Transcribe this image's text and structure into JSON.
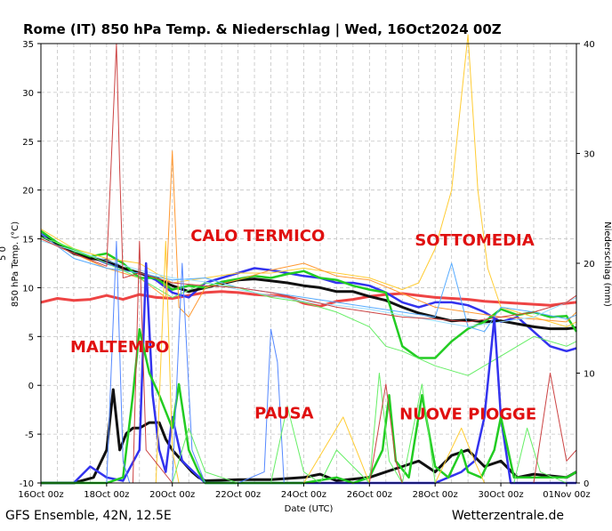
{
  "chart_data": {
    "type": "line",
    "title": "Rome  (IT)  850 hPa Temp. & Niederschlag | Wed, 16Oct2024 00Z",
    "xlabel": "Date (UTC)",
    "ylabel_left": "850 hPa Temp. (°C)",
    "ylabel_left_extra": "5\n0",
    "ylabel_right": "Niederschlag (mm)",
    "x_ticks": [
      "16Oct 00z",
      "18Oct 00z",
      "20Oct 00z",
      "22Oct 00z",
      "24Oct 00z",
      "26Oct 00z",
      "28Oct 00z",
      "30Oct 00z",
      "01Nov 00z"
    ],
    "x_range_days": [
      0,
      16.3
    ],
    "y_left_ticks": [
      35,
      30,
      25,
      20,
      15,
      10,
      5,
      0,
      -5,
      -10
    ],
    "y_left_range": [
      -10,
      35
    ],
    "y_right_ticks": [
      40,
      30,
      20,
      10,
      0
    ],
    "y_right_range": [
      0,
      40
    ],
    "grid": true,
    "annotations": [
      {
        "text": "CALO TERMICO",
        "x": 6.6,
        "y": 14.8
      },
      {
        "text": "SOTTOMEDIA",
        "x": 13.2,
        "y": 14.3
      },
      {
        "text": "MALTEMPO",
        "x": 2.4,
        "y": 3.4
      },
      {
        "text": "PAUSA",
        "x": 7.4,
        "y": -3.4
      },
      {
        "text": "NUOVE PIOGGE",
        "x": 13.0,
        "y": -3.5
      }
    ],
    "series": [
      {
        "role": "climatology",
        "color": "#ee4444",
        "width": 3,
        "axis": "left",
        "x": [
          0,
          0.5,
          1,
          1.5,
          2,
          2.5,
          3,
          3.5,
          4,
          4.5,
          5,
          5.5,
          6,
          6.5,
          7,
          7.5,
          8,
          8.5,
          9,
          9.5,
          10,
          10.5,
          11,
          11.5,
          12,
          12.5,
          13,
          13.5,
          14,
          14.5,
          15,
          15.5,
          16,
          16.3
        ],
        "y": [
          8.5,
          8.9,
          8.7,
          8.8,
          9.2,
          8.8,
          9.3,
          9.0,
          8.9,
          9.2,
          9.5,
          9.6,
          9.5,
          9.3,
          9.2,
          9.1,
          8.4,
          8.1,
          8.6,
          8.8,
          9.1,
          9.3,
          9.4,
          9.2,
          9.0,
          8.9,
          8.8,
          8.6,
          8.5,
          8.4,
          8.3,
          8.2,
          8.4,
          8.5
        ]
      },
      {
        "role": "control",
        "color": "#3333ee",
        "width": 2.5,
        "axis": "left",
        "x": [
          0,
          0.5,
          1,
          1.5,
          2,
          2.5,
          3,
          3.5,
          4,
          4.5,
          5,
          5.5,
          6,
          6.5,
          7,
          7.5,
          8,
          8.5,
          9,
          9.5,
          10,
          10.5,
          11,
          11.5,
          12,
          12.5,
          13,
          13.5,
          14,
          14.5,
          15,
          15.5,
          16,
          16.3
        ],
        "y": [
          15.5,
          14.5,
          13.5,
          13.2,
          12.5,
          12.0,
          11.5,
          10.8,
          9.5,
          9.0,
          10.5,
          11.0,
          11.5,
          12.0,
          11.8,
          11.5,
          11.2,
          11.0,
          10.5,
          10.5,
          10.2,
          9.5,
          8.5,
          8.0,
          8.5,
          8.5,
          8.2,
          7.5,
          6.5,
          7.0,
          5.5,
          4.0,
          3.5,
          3.8
        ]
      },
      {
        "role": "mean",
        "color": "#111111",
        "width": 3,
        "axis": "left",
        "x": [
          0,
          0.5,
          1,
          1.5,
          2,
          2.5,
          3,
          3.5,
          4,
          4.5,
          5,
          5.5,
          6,
          6.5,
          7,
          7.5,
          8,
          8.5,
          9,
          9.5,
          10,
          10.5,
          11,
          11.5,
          12,
          12.5,
          13,
          13.5,
          14,
          14.5,
          15,
          15.5,
          16,
          16.3
        ],
        "y": [
          15.3,
          14.5,
          13.5,
          13.0,
          12.8,
          12.0,
          11.5,
          11.0,
          10.2,
          9.6,
          10.0,
          10.4,
          10.8,
          10.9,
          10.7,
          10.5,
          10.2,
          10.0,
          9.6,
          9.6,
          9.1,
          8.7,
          8.0,
          7.4,
          7.0,
          6.6,
          6.7,
          6.5,
          6.6,
          6.3,
          6.0,
          5.8,
          5.8,
          5.9
        ]
      },
      {
        "role": "member",
        "color": "#22cc22",
        "width": 2.5,
        "axis": "left",
        "x": [
          0,
          0.5,
          1,
          1.5,
          2,
          2.5,
          3,
          3.5,
          4,
          4.5,
          5,
          5.5,
          6,
          6.5,
          7,
          7.5,
          8,
          8.5,
          9,
          9.5,
          10,
          10.5,
          11,
          11.5,
          12,
          12.5,
          13,
          13.5,
          14,
          14.5,
          15,
          15.5,
          16,
          16.3
        ],
        "y": [
          15.8,
          14.6,
          13.8,
          13.2,
          13.5,
          12.5,
          11.0,
          11.0,
          9.8,
          10.2,
          10.0,
          10.6,
          10.9,
          11.2,
          11.0,
          11.4,
          11.7,
          11.0,
          10.8,
          10.2,
          9.8,
          9.5,
          4.0,
          2.8,
          2.8,
          4.5,
          5.8,
          6.5,
          7.8,
          7.2,
          7.5,
          7.0,
          7.1,
          5.5
        ]
      },
      {
        "role": "member",
        "color": "#ffcc33",
        "width": 1,
        "axis": "left",
        "x": [
          0,
          1,
          2,
          3,
          4,
          5,
          6,
          7,
          8,
          9,
          10,
          11,
          11.5,
          12,
          12.5,
          13,
          13.3,
          13.6,
          14,
          15,
          16,
          16.3
        ],
        "y": [
          16.0,
          14.0,
          13.0,
          12.5,
          10.5,
          11.0,
          11.5,
          11.5,
          12.0,
          11.5,
          11.0,
          9.8,
          10.5,
          14.0,
          20.0,
          38.0,
          20.0,
          12.0,
          8.0,
          7.0,
          6.0,
          6.5
        ]
      },
      {
        "role": "member",
        "color": "#ff9933",
        "width": 1,
        "axis": "left",
        "x": [
          0,
          1,
          2,
          3,
          3.8,
          4,
          4.2,
          4.5,
          5,
          6,
          7,
          8,
          9,
          10,
          11,
          12,
          13,
          14,
          15,
          16,
          16.3
        ],
        "y": [
          15.0,
          13.5,
          12.0,
          11.0,
          9.0,
          24.0,
          8.0,
          7.0,
          10.0,
          10.8,
          11.8,
          12.5,
          11.2,
          10.8,
          9.4,
          8.0,
          7.5,
          7.0,
          6.8,
          6.5,
          7.5
        ]
      },
      {
        "role": "member",
        "color": "#55aaff",
        "width": 1,
        "axis": "left",
        "x": [
          0,
          1,
          2,
          3,
          4,
          5,
          6,
          7,
          8,
          9,
          10,
          11,
          12,
          12.5,
          13,
          13.5,
          14,
          15,
          16,
          16.3
        ],
        "y": [
          15.5,
          13.0,
          12.0,
          11.5,
          10.8,
          11.0,
          10.0,
          9.5,
          9.0,
          8.5,
          8.0,
          7.5,
          7.0,
          12.5,
          6.0,
          5.5,
          8.0,
          7.5,
          6.8,
          7.2
        ]
      },
      {
        "role": "member",
        "color": "#66ee66",
        "width": 1,
        "axis": "left",
        "x": [
          0,
          1,
          2,
          3,
          4,
          5,
          6,
          7,
          8,
          9,
          10,
          10.5,
          11,
          12,
          13,
          14,
          15,
          16,
          16.3
        ],
        "y": [
          15.2,
          14.0,
          12.5,
          11.0,
          9.0,
          10.5,
          10.0,
          9.0,
          8.5,
          7.5,
          6.0,
          4.0,
          3.5,
          2.0,
          1.0,
          3.0,
          5.0,
          4.0,
          4.5
        ]
      },
      {
        "role": "member",
        "color": "#99ddff",
        "width": 1,
        "axis": "left",
        "x": [
          0,
          1,
          2,
          3,
          4,
          5,
          6,
          7,
          8,
          9,
          10,
          11,
          12,
          13,
          14,
          15,
          16,
          16.3
        ],
        "y": [
          14.8,
          13.8,
          12.8,
          11.8,
          11.0,
          10.6,
          9.8,
          9.2,
          8.6,
          8.2,
          7.8,
          7.2,
          6.6,
          6.0,
          6.5,
          7.0,
          8.5,
          9.0
        ]
      },
      {
        "role": "member",
        "color": "#cc4444",
        "width": 1,
        "axis": "left",
        "x": [
          0,
          1,
          2,
          2.3,
          2.4,
          2.5,
          3,
          4,
          5,
          6,
          7,
          8,
          9,
          10,
          11,
          12,
          13,
          14,
          15,
          16,
          16.3
        ],
        "y": [
          15.0,
          13.5,
          12.2,
          35.0,
          22.0,
          11.0,
          11.5,
          10.5,
          10.2,
          10.0,
          9.5,
          8.8,
          8.0,
          7.5,
          7.0,
          6.8,
          6.5,
          7.0,
          7.5,
          8.5,
          9.2
        ]
      },
      {
        "role": "precip",
        "color": "#111111",
        "width": 3,
        "axis": "right",
        "x": [
          0,
          1,
          1.6,
          2.0,
          2.2,
          2.4,
          2.6,
          2.8,
          3.0,
          3.3,
          3.6,
          3.8,
          4.0,
          4.3,
          4.6,
          4.8,
          5,
          6,
          7,
          8,
          8.5,
          9,
          10,
          10.5,
          11,
          11.5,
          12,
          12.5,
          13,
          13.5,
          14,
          14.5,
          15,
          16,
          16.3
        ],
        "x_note": "days since 16Oct 00z",
        "y": [
          0,
          0,
          0.5,
          3.0,
          8.5,
          3.0,
          4.5,
          5.0,
          5.0,
          5.5,
          5.5,
          4.0,
          3.0,
          2.0,
          1.0,
          0.5,
          0.2,
          0.3,
          0.3,
          0.5,
          0.8,
          0.2,
          0.5,
          1.0,
          1.5,
          2.0,
          1.0,
          2.5,
          3.0,
          1.5,
          2.0,
          0.5,
          0.8,
          0.5,
          1.0
        ]
      },
      {
        "role": "precip",
        "color": "#3333ee",
        "width": 2.5,
        "axis": "right",
        "x": [
          0,
          1,
          1.5,
          2,
          2.5,
          3,
          3.2,
          3.4,
          3.6,
          3.8,
          4.0,
          4.3,
          5,
          8,
          12,
          12.8,
          13.2,
          13.5,
          13.8,
          14,
          14.3,
          16.3
        ],
        "y": [
          0,
          0,
          1.5,
          0.5,
          0.2,
          3.0,
          20.0,
          8.0,
          3.0,
          1.0,
          6.0,
          2.0,
          0,
          0,
          0,
          1.0,
          2.0,
          6.0,
          15.0,
          6.0,
          0,
          0
        ]
      },
      {
        "role": "precip",
        "color": "#22cc22",
        "width": 2.5,
        "axis": "right",
        "x": [
          0,
          2,
          2.5,
          2.8,
          3.0,
          3.3,
          3.6,
          4.0,
          4.2,
          4.5,
          4.8,
          5,
          6,
          8,
          9,
          9.5,
          10,
          10.4,
          10.6,
          10.8,
          11.2,
          11.6,
          12,
          12.4,
          12.8,
          13,
          13.4,
          13.8,
          14,
          14.4,
          14.8,
          15,
          16,
          16.3
        ],
        "y": [
          0,
          0,
          0.5,
          8.0,
          14.0,
          10.0,
          8.0,
          5.0,
          9.0,
          3.0,
          1.0,
          0,
          0,
          0,
          0.5,
          0,
          0.5,
          3.0,
          8.0,
          2.0,
          0.5,
          8.0,
          1.5,
          0.5,
          3.0,
          1.0,
          0.5,
          3.0,
          6.0,
          0.5,
          0.5,
          0.5,
          0.5,
          1.0
        ]
      },
      {
        "role": "precip",
        "color": "#5588ff",
        "width": 1,
        "axis": "right",
        "x": [
          0,
          2,
          2.3,
          2.5,
          2.7,
          4,
          4.3,
          4.6,
          5,
          6,
          6.8,
          7.0,
          7.2,
          7.4,
          8,
          16.3
        ],
        "y": [
          0,
          0,
          22.0,
          2.0,
          0,
          0,
          20.0,
          3.0,
          0,
          0,
          1.0,
          14.0,
          11.0,
          0,
          0,
          0
        ]
      },
      {
        "role": "precip",
        "color": "#ffcc33",
        "width": 1,
        "axis": "right",
        "x": [
          0,
          3.5,
          3.8,
          4.0,
          4.2,
          8,
          9.2,
          9.6,
          10,
          12,
          12.8,
          13.2,
          13.5,
          16.3
        ],
        "y": [
          0,
          0,
          22.0,
          3.0,
          0,
          0,
          6.0,
          3.0,
          0,
          0,
          5.0,
          2.0,
          0,
          0
        ]
      },
      {
        "role": "precip",
        "color": "#66ee66",
        "width": 1,
        "axis": "right",
        "x": [
          0,
          4,
          4.5,
          5,
          6,
          7,
          7.5,
          8,
          8.5,
          9,
          10,
          10.3,
          10.6,
          11,
          11.6,
          12,
          14.4,
          14.8,
          15.2,
          16,
          16.3
        ],
        "y": [
          0,
          0,
          5.0,
          1.0,
          0,
          0,
          7.0,
          1.0,
          0,
          3.0,
          0,
          10.0,
          2.0,
          0,
          9.0,
          0,
          0,
          5.0,
          1.0,
          0,
          0
        ]
      },
      {
        "role": "precip",
        "color": "#cc4444",
        "width": 1,
        "axis": "right",
        "x": [
          0,
          2.8,
          3.0,
          3.2,
          4,
          10,
          10.5,
          10.8,
          11,
          15,
          15.5,
          16,
          16.3
        ],
        "y": [
          0,
          0,
          22.0,
          3.0,
          0,
          0,
          9.0,
          2.0,
          0,
          0,
          10.0,
          2.0,
          3.0
        ]
      }
    ]
  },
  "footer": {
    "left": "GFS Ensemble, 42N, 12.5E",
    "right": "Wetterzentrale.de"
  }
}
